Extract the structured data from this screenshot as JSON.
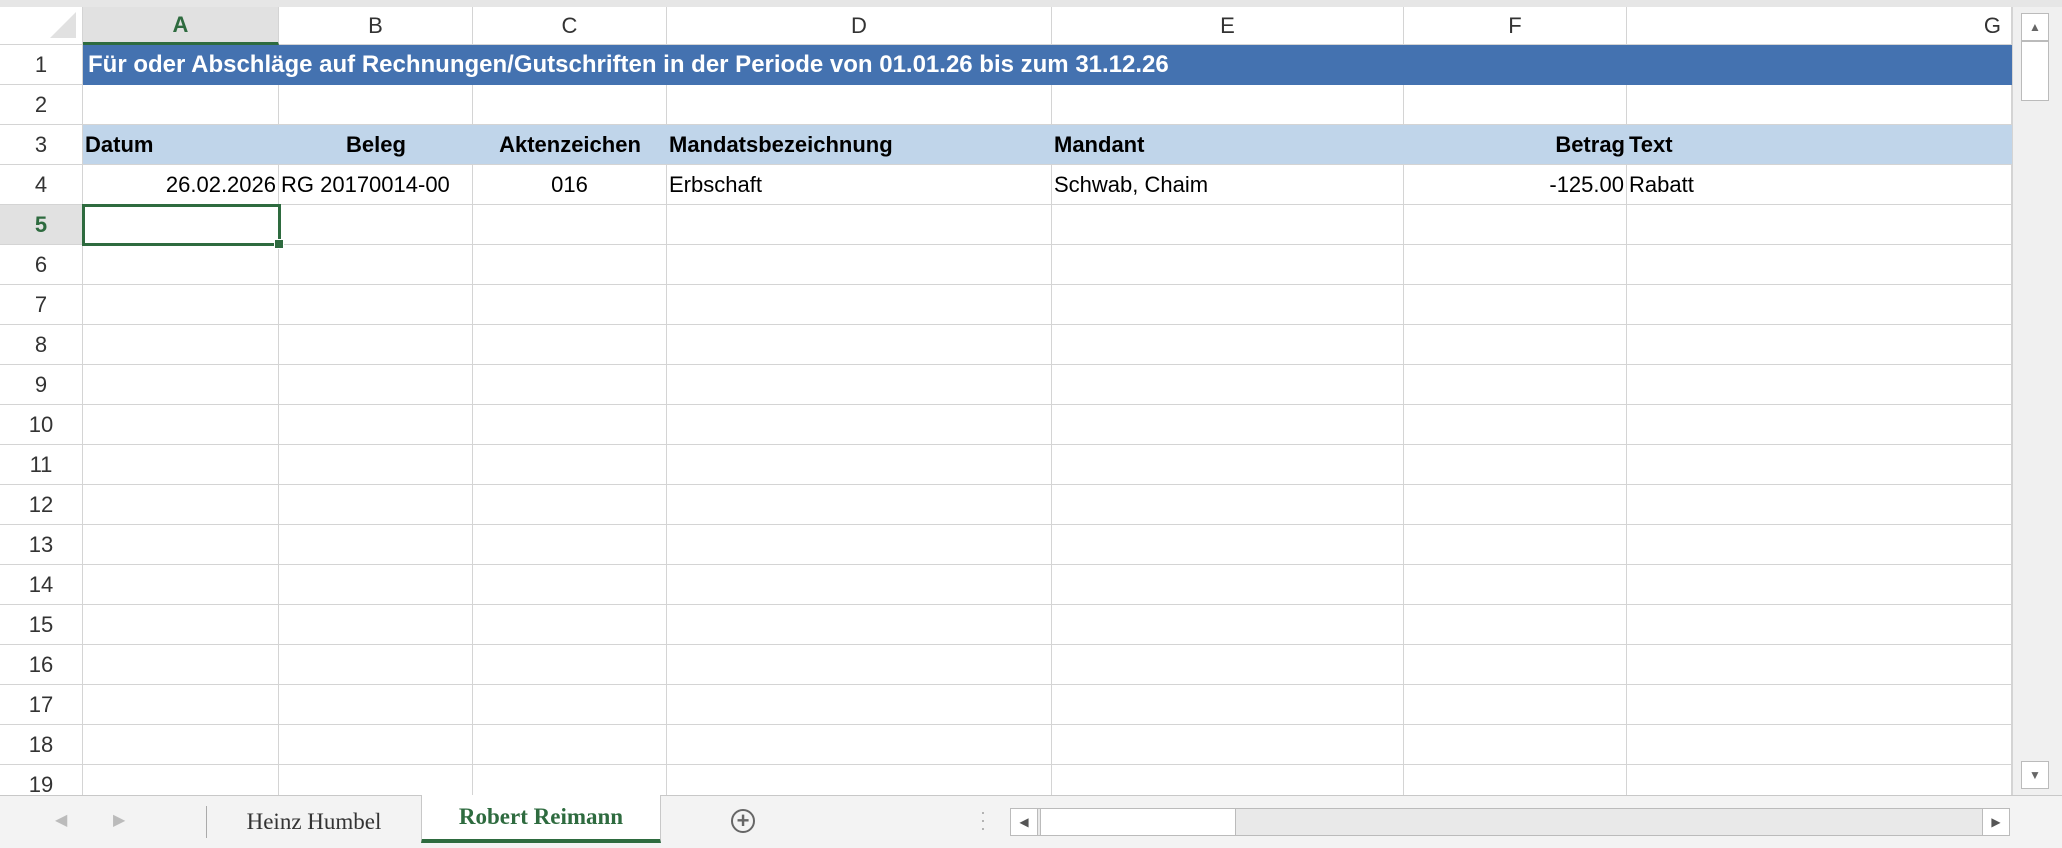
{
  "columns": [
    "A",
    "B",
    "C",
    "D",
    "E",
    "F",
    "G"
  ],
  "selected_cell": {
    "column": "A",
    "row": 5
  },
  "rows_visible": [
    1,
    2,
    3,
    4,
    5,
    6,
    7,
    8,
    9,
    10,
    11,
    12,
    13,
    14,
    15,
    16,
    17,
    18,
    19
  ],
  "title": "Für oder Abschläge auf Rechnungen/Gutschriften in der Periode von 01.01.26 bis zum 31.12.26",
  "headers": [
    "Datum",
    "Beleg",
    "Aktenzeichen",
    "Mandatsbezeichnung",
    "Mandant",
    "Betrag",
    "Text"
  ],
  "data_rows": [
    [
      "26.02.2026",
      "RG 20170014-00",
      "016",
      "Erbschaft",
      "Schwab, Chaim",
      "-125.00",
      "Rabatt"
    ]
  ],
  "sheet_tabs": [
    {
      "label": "Heinz Humbel",
      "active": false
    },
    {
      "label": "Robert Reimann",
      "active": true
    }
  ],
  "colors": {
    "title_fill": "#4472b0",
    "header_fill": "#c0d5ea",
    "accent": "#2e6b3f"
  },
  "icons": {
    "add_sheet": "plus-circle-icon",
    "prev": "chevron-left-icon",
    "next": "chevron-right-icon"
  }
}
